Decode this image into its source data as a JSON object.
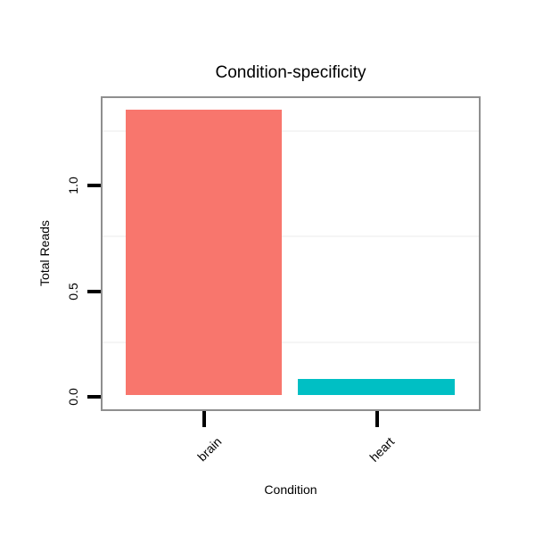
{
  "chart_data": {
    "type": "bar",
    "title": "Condition-specificity",
    "xlabel": "Condition",
    "ylabel": "Total Reads",
    "categories": [
      "brain",
      "heart"
    ],
    "values": [
      1.35,
      0.075
    ],
    "bar_colors": [
      "#F8766D",
      "#00BFC4"
    ],
    "yticks": [
      {
        "value": 0.0,
        "label": "0.0"
      },
      {
        "value": 0.5,
        "label": "0.5"
      },
      {
        "value": 1.0,
        "label": "1.0"
      }
    ],
    "minor_gridlines": [
      0.25,
      0.75,
      1.25
    ],
    "ylim": [
      -0.068,
      1.423
    ],
    "grid": "minor-horizontal-only",
    "legend": "none",
    "colors": {
      "background": "#ffffff",
      "panel_background": "#ffffff",
      "panel_border": "#8f8f8f",
      "tick": "#000000",
      "text": "#000000",
      "gridline_minor": "#f5f5f5"
    }
  }
}
